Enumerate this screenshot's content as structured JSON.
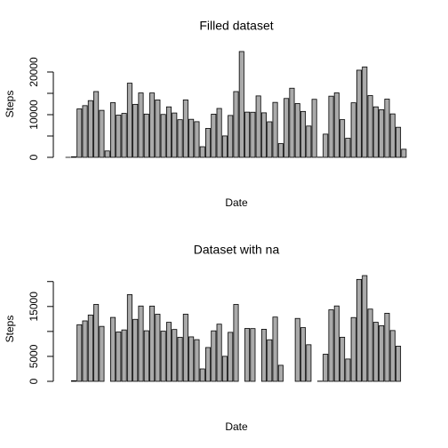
{
  "chart_data": [
    {
      "type": "bar",
      "title": "Filled dataset",
      "xlabel": "Date",
      "ylabel": "Steps",
      "color": "#aaaaaa",
      "categories": [
        null,
        null,
        null,
        null,
        null,
        null,
        null,
        null,
        null,
        null,
        null,
        null,
        null,
        null,
        null,
        null,
        null,
        null,
        null,
        null,
        null,
        null,
        null,
        null,
        null,
        null,
        null,
        null,
        null,
        null,
        null,
        null,
        null,
        null,
        null,
        null,
        null,
        null,
        null,
        null,
        null,
        null,
        null,
        null,
        null,
        null,
        null,
        null,
        null,
        null,
        null,
        null,
        null,
        null,
        null,
        null,
        null,
        null,
        null,
        null,
        null
      ],
      "values": [
        0,
        126,
        11352,
        12116,
        13294,
        15420,
        11015,
        1500,
        12811,
        9900,
        10304,
        17382,
        12426,
        15098,
        10139,
        15084,
        13452,
        10056,
        11829,
        10395,
        8821,
        13460,
        8918,
        8355,
        2492,
        6778,
        10119,
        11458,
        5018,
        9819,
        15414,
        24800,
        10600,
        10571,
        14400,
        10439,
        8334,
        12883,
        3219,
        13800,
        16200,
        12608,
        10765,
        7336,
        13600,
        41,
        5441,
        14339,
        15110,
        8841,
        4472,
        12787,
        20427,
        21194,
        14478,
        11834,
        11162,
        13646,
        10183,
        7047,
        1900
      ],
      "ylim": [
        0,
        25000
      ],
      "yticks": [
        0,
        10000,
        20000
      ],
      "yticks_minor": [
        5000,
        15000
      ]
    },
    {
      "type": "bar",
      "title": "Dataset with na",
      "xlabel": "Date",
      "ylabel": "Steps",
      "color": "#aaaaaa",
      "categories": [
        null,
        null,
        null,
        null,
        null,
        null,
        null,
        null,
        null,
        null,
        null,
        null,
        null,
        null,
        null,
        null,
        null,
        null,
        null,
        null,
        null,
        null,
        null,
        null,
        null,
        null,
        null,
        null,
        null,
        null,
        null,
        null,
        null,
        null,
        null,
        null,
        null,
        null,
        null,
        null,
        null,
        null,
        null,
        null,
        null,
        null,
        null,
        null,
        null,
        null,
        null,
        null,
        null,
        null,
        null,
        null,
        null,
        null,
        null,
        null,
        null
      ],
      "values": [
        null,
        126,
        11352,
        12116,
        13294,
        15420,
        11015,
        null,
        12811,
        9900,
        10304,
        17382,
        12426,
        15098,
        10139,
        15084,
        13452,
        10056,
        11829,
        10395,
        8821,
        13460,
        8918,
        8355,
        2492,
        6778,
        10119,
        11458,
        5018,
        9819,
        15414,
        null,
        10600,
        10571,
        null,
        10439,
        8334,
        12883,
        3219,
        null,
        null,
        12608,
        10765,
        7336,
        null,
        41,
        5441,
        14339,
        15110,
        8841,
        4472,
        12787,
        20427,
        21194,
        14478,
        11834,
        11162,
        13646,
        10183,
        7047,
        null
      ],
      "ylim": [
        0,
        21200
      ],
      "yticks": [
        0,
        5000,
        15000
      ],
      "yticks_minor": [
        10000,
        20000
      ]
    }
  ]
}
